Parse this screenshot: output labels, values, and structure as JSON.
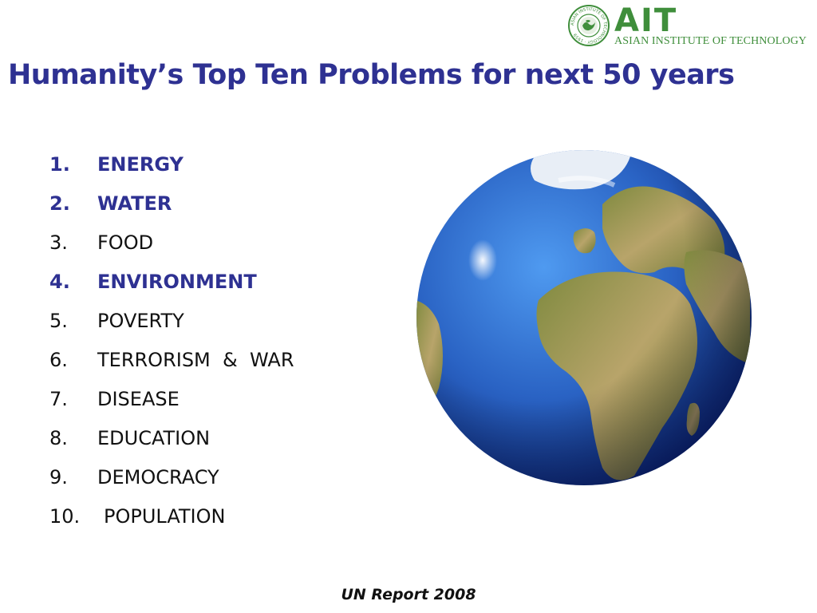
{
  "logo": {
    "mark": "AIT",
    "name": "ASIAN INSTITUTE OF TECHNOLOGY",
    "seal_text": "ASIAN INSTITUTE OF TECHNOLOGY · 1959",
    "color": "#3f8e3b"
  },
  "title": "Humanity’s Top Ten Problems for next 50 years",
  "problems": [
    {
      "num": "1.",
      "label": "ENERGY",
      "highlight": true
    },
    {
      "num": "2.",
      "label": "WATER",
      "highlight": true
    },
    {
      "num": "3.",
      "label": "FOOD",
      "highlight": false
    },
    {
      "num": "4.",
      "label": "ENVIRONMENT",
      "highlight": true
    },
    {
      "num": "5.",
      "label": "POVERTY",
      "highlight": false
    },
    {
      "num": "6.",
      "label": "TERRORISM  &  WAR",
      "highlight": false
    },
    {
      "num": "7.",
      "label": "DISEASE",
      "highlight": false
    },
    {
      "num": "8.",
      "label": "EDUCATION",
      "highlight": false
    },
    {
      "num": "9.",
      "label": "DEMOCRACY",
      "highlight": false
    },
    {
      "num": "10.",
      "label": "POPULATION",
      "highlight": false
    }
  ],
  "source": "UN Report 2008",
  "colors": {
    "title": "#2e3192",
    "highlight": "#2e3192",
    "ocean": "#2a63c4",
    "land": "#9a8a4a"
  },
  "images": {
    "globe": "earth-globe-icon"
  }
}
